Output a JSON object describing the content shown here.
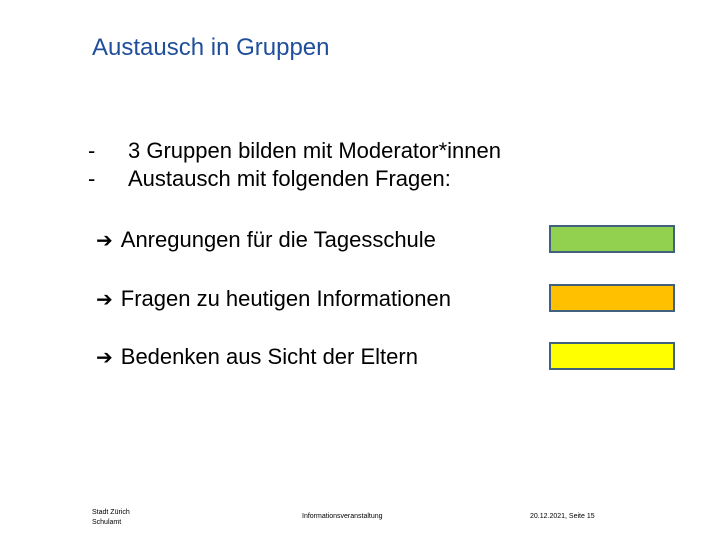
{
  "slide": {
    "title": "Austausch in Gruppen",
    "bullets": [
      {
        "marker": "-",
        "text": "3 Gruppen bilden mit Moderator*innen"
      },
      {
        "marker": "-",
        "text": "Austausch mit folgenden Fragen:"
      }
    ],
    "arrow_items": [
      {
        "text": "Anregungen für die Tagesschule",
        "color": "#92d050"
      },
      {
        "text": "Fragen zu heutigen Informationen",
        "color": "#ffc000"
      },
      {
        "text": "Bedenken aus Sicht der Eltern",
        "color": "#ffff00"
      }
    ],
    "arrow_icon": "right-arrow-icon"
  },
  "footer": {
    "org_line1": "Stadt Zürich",
    "org_line2": "Schulamt",
    "event": "Informationsveranstaltung",
    "date_page": "20.12.2021, Seite 15"
  }
}
